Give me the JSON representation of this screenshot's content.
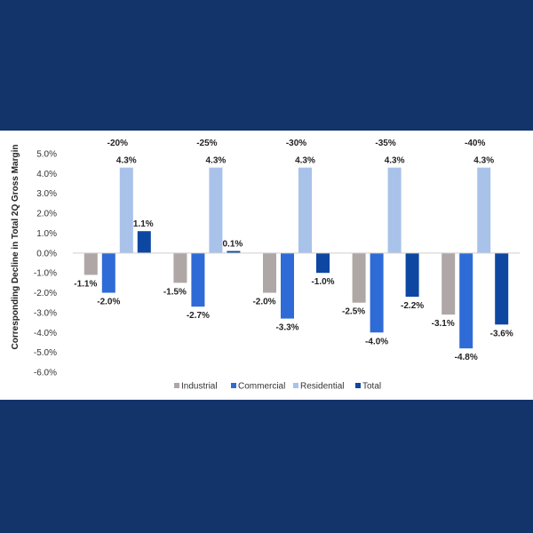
{
  "chart_data": {
    "type": "bar",
    "title": "",
    "xlabel": "",
    "ylabel": "Corresponding Decline in Total 2Q Gross Margin",
    "ylim": [
      -6.0,
      5.0
    ],
    "ytick_step": 1.0,
    "ytick_labels": [
      "-6.0%",
      "-5.0%",
      "-4.0%",
      "-3.0%",
      "-2.0%",
      "-1.0%",
      "0.0%",
      "1.0%",
      "2.0%",
      "3.0%",
      "4.0%",
      "5.0%"
    ],
    "categories": [
      "-20%",
      "-25%",
      "-30%",
      "-35%",
      "-40%"
    ],
    "category_label_position": "top",
    "legend_position": "bottom",
    "grid": false,
    "series": [
      {
        "name": "Industrial",
        "color": "#aea7a5",
        "values": [
          -1.1,
          -1.5,
          -2.0,
          -2.5,
          -3.1
        ],
        "labels": [
          "-1.1%",
          "-1.5%",
          "-2.0%",
          "-2.5%",
          "-3.1%"
        ]
      },
      {
        "name": "Commercial",
        "color": "#2e6bd6",
        "values": [
          -2.0,
          -2.7,
          -3.3,
          -4.0,
          -4.8
        ],
        "labels": [
          "-2.0%",
          "-2.7%",
          "-3.3%",
          "-4.0%",
          "-4.8%"
        ]
      },
      {
        "name": "Residential",
        "color": "#a8c2ea",
        "values": [
          4.3,
          4.3,
          4.3,
          4.3,
          4.3
        ],
        "labels": [
          "4.3%",
          "4.3%",
          "4.3%",
          "4.3%",
          "4.3%"
        ]
      },
      {
        "name": "Total",
        "color": "#0d47a1",
        "values": [
          1.1,
          0.1,
          -1.0,
          -2.2,
          -3.6
        ],
        "labels": [
          "1.1%",
          "0.1%",
          "-1.0%",
          "-2.2%",
          "-3.6%"
        ]
      }
    ]
  }
}
